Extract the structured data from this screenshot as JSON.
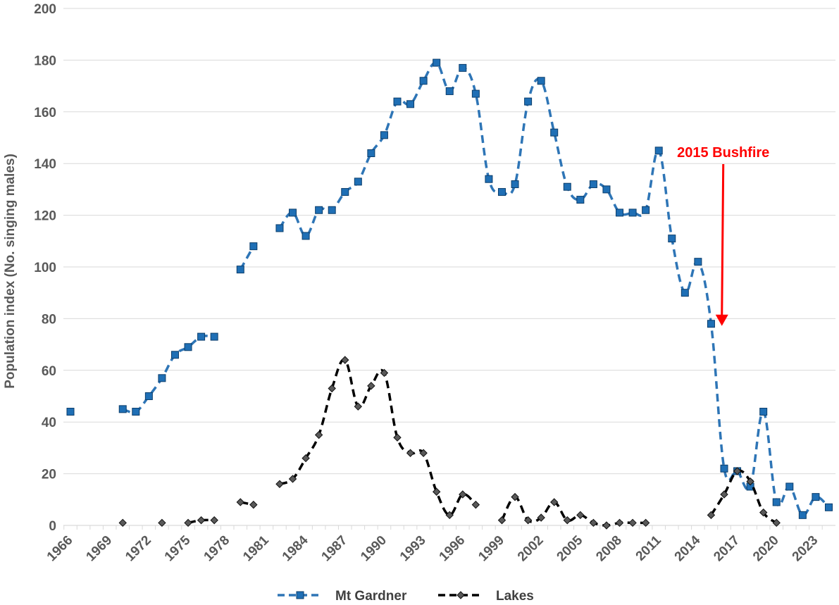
{
  "chart_data": {
    "type": "line",
    "title": "",
    "xlabel": "",
    "ylabel": "Population index (No. singing males)",
    "ylim": [
      0,
      200
    ],
    "yticks": [
      0,
      20,
      40,
      60,
      80,
      100,
      120,
      140,
      160,
      180,
      200
    ],
    "xlim": [
      1966,
      2024
    ],
    "xticks": [
      1966,
      1969,
      1972,
      1975,
      1978,
      1981,
      1984,
      1987,
      1990,
      1993,
      1996,
      1999,
      2002,
      2005,
      2008,
      2011,
      2014,
      2017,
      2020,
      2023
    ],
    "grid": "horizontal",
    "legend_position": "bottom",
    "colors": {
      "mt_gardner": "#2E75B6",
      "mt_gardner_marker": "#1F6FB5",
      "lakes": "#000000",
      "lakes_marker": "#595959",
      "annotation": "#FF0000",
      "grid": "#D9D9D9",
      "text": "#595959"
    },
    "series": [
      {
        "name": "Mt Gardner",
        "x": [
          1966,
          1970,
          1971,
          1972,
          1973,
          1974,
          1975,
          1976,
          1977,
          1979,
          1980,
          1982,
          1983,
          1984,
          1985,
          1986,
          1987,
          1988,
          1989,
          1990,
          1991,
          1992,
          1993,
          1994,
          1995,
          1996,
          1997,
          1998,
          1999,
          2000,
          2001,
          2002,
          2003,
          2004,
          2005,
          2006,
          2007,
          2008,
          2009,
          2010,
          2011,
          2012,
          2013,
          2014,
          2015,
          2016,
          2017,
          2018,
          2019,
          2020,
          2021,
          2022,
          2023,
          2024
        ],
        "y": [
          44,
          45,
          44,
          50,
          57,
          66,
          69,
          73,
          73,
          99,
          108,
          115,
          121,
          112,
          122,
          122,
          129,
          133,
          144,
          151,
          164,
          163,
          172,
          179,
          168,
          177,
          167,
          134,
          129,
          132,
          164,
          172,
          152,
          131,
          126,
          132,
          130,
          121,
          121,
          122,
          145,
          111,
          90,
          102,
          78,
          22,
          21,
          15,
          44,
          9,
          15,
          4,
          11,
          7
        ]
      },
      {
        "name": "Lakes",
        "x": [
          1970,
          1973,
          1975,
          1976,
          1977,
          1979,
          1980,
          1982,
          1983,
          1984,
          1985,
          1986,
          1987,
          1988,
          1989,
          1990,
          1991,
          1992,
          1993,
          1994,
          1995,
          1996,
          1997,
          1999,
          2000,
          2001,
          2002,
          2003,
          2004,
          2005,
          2006,
          2007,
          2008,
          2009,
          2010,
          2015,
          2016,
          2017,
          2018,
          2019,
          2020
        ],
        "y": [
          1,
          1,
          1,
          2,
          2,
          9,
          8,
          16,
          18,
          26,
          35,
          53,
          64,
          46,
          54,
          59,
          34,
          28,
          28,
          13,
          4,
          12,
          8,
          2,
          11,
          2,
          3,
          9,
          2,
          4,
          1,
          0,
          1,
          1,
          1,
          4,
          12,
          21,
          17,
          5,
          1
        ]
      }
    ],
    "annotations": [
      {
        "text": "2015 Bushfire",
        "x": 2015.5,
        "y": 75,
        "type": "arrow-down"
      }
    ]
  }
}
